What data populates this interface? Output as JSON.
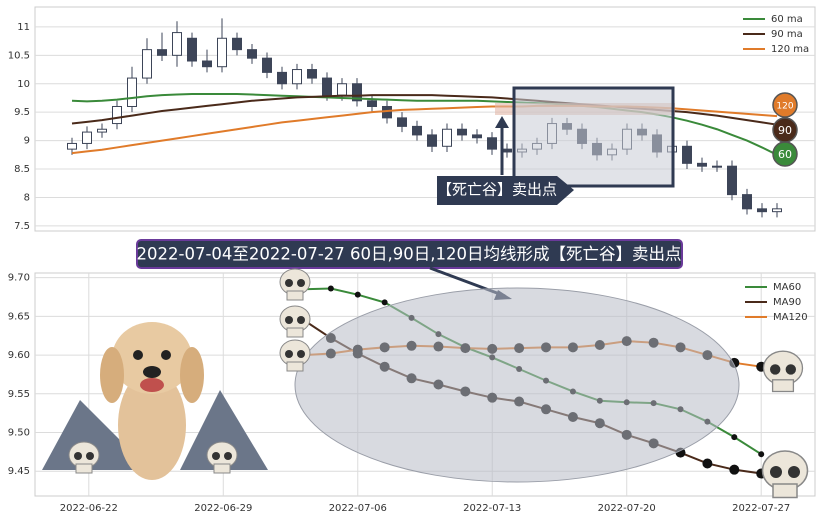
{
  "chart_data": [
    {
      "type": "candlestick",
      "open": [
        8.85,
        8.95,
        9.15,
        9.3,
        9.6,
        10.1,
        10.6,
        10.5,
        10.8,
        10.4,
        10.3,
        10.8,
        10.6,
        10.45,
        10.2,
        10.0,
        10.25,
        10.1,
        9.8,
        10.0,
        9.7,
        9.6,
        9.4,
        9.25,
        9.1,
        8.9,
        9.2,
        9.1,
        9.05,
        8.85,
        8.8,
        8.85,
        8.95,
        9.3,
        9.2,
        8.95,
        8.75,
        8.85,
        9.2,
        9.1,
        8.8,
        8.9,
        8.6,
        8.55,
        8.55,
        8.05,
        7.8,
        7.75
      ],
      "high": [
        9.05,
        9.25,
        9.3,
        9.7,
        10.3,
        10.8,
        10.9,
        11.1,
        10.9,
        10.6,
        11.15,
        10.9,
        10.7,
        10.55,
        10.3,
        10.35,
        10.35,
        10.2,
        10.1,
        10.1,
        9.8,
        9.7,
        9.5,
        9.35,
        9.2,
        9.3,
        9.3,
        9.2,
        9.15,
        8.95,
        8.95,
        9.05,
        9.4,
        9.4,
        9.3,
        9.05,
        8.95,
        9.3,
        9.3,
        9.2,
        9.0,
        9.0,
        8.7,
        8.65,
        8.65,
        8.15,
        7.9,
        7.9
      ],
      "low": [
        8.75,
        8.85,
        9.05,
        9.2,
        9.5,
        10.0,
        10.4,
        10.3,
        10.3,
        10.2,
        10.2,
        10.5,
        10.35,
        10.1,
        9.9,
        9.9,
        10.0,
        9.7,
        9.7,
        9.6,
        9.5,
        9.3,
        9.15,
        9.0,
        8.8,
        8.8,
        9.0,
        8.95,
        8.75,
        8.7,
        8.7,
        8.75,
        8.85,
        9.1,
        8.85,
        8.65,
        8.65,
        8.75,
        9.0,
        8.7,
        8.7,
        8.5,
        8.45,
        8.45,
        7.95,
        7.7,
        7.65,
        7.65
      ],
      "close": [
        8.95,
        9.15,
        9.2,
        9.6,
        10.1,
        10.6,
        10.5,
        10.9,
        10.4,
        10.3,
        10.8,
        10.6,
        10.45,
        10.2,
        10.0,
        10.25,
        10.1,
        9.8,
        10.0,
        9.7,
        9.6,
        9.4,
        9.25,
        9.1,
        8.9,
        9.2,
        9.1,
        9.05,
        8.85,
        8.8,
        8.85,
        8.95,
        9.3,
        9.2,
        8.95,
        8.75,
        8.85,
        9.2,
        9.1,
        8.8,
        8.9,
        8.6,
        8.55,
        8.55,
        8.05,
        7.8,
        7.75,
        7.8
      ],
      "up_color": "#ffffff",
      "down_color": "#3d4558",
      "series": [
        {
          "name": "60 ma",
          "color": "#3a8a3a",
          "badge": "60",
          "values": [
            9.7,
            9.69,
            9.7,
            9.72,
            9.75,
            9.78,
            9.8,
            9.81,
            9.82,
            9.82,
            9.82,
            9.82,
            9.81,
            9.8,
            9.79,
            9.78,
            9.77,
            9.76,
            9.75,
            9.74,
            9.73,
            9.72,
            9.71,
            9.7,
            9.7,
            9.7,
            9.7,
            9.7,
            9.69,
            9.68,
            9.67,
            9.66,
            9.65,
            9.63,
            9.61,
            9.59,
            9.56,
            9.53,
            9.5,
            9.46,
            9.41,
            9.35,
            9.28,
            9.2,
            9.1,
            9.0,
            8.88,
            8.75
          ]
        },
        {
          "name": "90 ma",
          "color": "#4a2a1a",
          "badge": "90",
          "values": [
            9.3,
            9.33,
            9.36,
            9.4,
            9.44,
            9.48,
            9.52,
            9.55,
            9.58,
            9.61,
            9.64,
            9.67,
            9.7,
            9.72,
            9.74,
            9.76,
            9.77,
            9.78,
            9.79,
            9.79,
            9.8,
            9.8,
            9.8,
            9.8,
            9.8,
            9.79,
            9.78,
            9.77,
            9.76,
            9.74,
            9.72,
            9.7,
            9.68,
            9.66,
            9.64,
            9.62,
            9.6,
            9.58,
            9.56,
            9.54,
            9.52,
            9.5,
            9.47,
            9.44,
            9.4,
            9.36,
            9.32,
            9.28
          ]
        },
        {
          "name": "120 ma",
          "color": "#e07b2a",
          "badge": "120",
          "values": [
            8.78,
            8.81,
            8.84,
            8.88,
            8.92,
            8.96,
            9.0,
            9.04,
            9.08,
            9.12,
            9.16,
            9.2,
            9.24,
            9.28,
            9.32,
            9.35,
            9.38,
            9.41,
            9.44,
            9.47,
            9.5,
            9.52,
            9.54,
            9.55,
            9.56,
            9.57,
            9.58,
            9.59,
            9.6,
            9.6,
            9.6,
            9.61,
            9.61,
            9.61,
            9.61,
            9.6,
            9.6,
            9.6,
            9.59,
            9.58,
            9.57,
            9.55,
            9.53,
            9.51,
            9.49,
            9.47,
            9.45,
            9.43
          ]
        }
      ],
      "ylim": [
        7.41,
        11.35
      ],
      "yticks": [
        7.5,
        8.0,
        8.5,
        9.0,
        9.5,
        10.0,
        10.5,
        11.0
      ],
      "grid": true,
      "legend": "upper right",
      "annotation": "【死亡谷】卖出点",
      "banner": "2022-07-04至2022-07-27 60日,90日,120日均线形成【死亡谷】卖出点"
    },
    {
      "type": "line",
      "x": [
        "2022-07-04",
        "2022-07-05",
        "2022-07-06",
        "2022-07-07",
        "2022-07-08",
        "2022-07-11",
        "2022-07-12",
        "2022-07-13",
        "2022-07-14",
        "2022-07-15",
        "2022-07-18",
        "2022-07-19",
        "2022-07-20",
        "2022-07-21",
        "2022-07-22",
        "2022-07-25",
        "2022-07-26",
        "2022-07-27"
      ],
      "series": [
        {
          "name": "MA60",
          "color": "#3a8a3a",
          "values": [
            9.685,
            9.686,
            9.678,
            9.668,
            9.648,
            9.627,
            9.61,
            9.597,
            9.582,
            9.567,
            9.553,
            9.541,
            9.539,
            9.538,
            9.53,
            9.514,
            9.494,
            9.472
          ]
        },
        {
          "name": "MA90",
          "color": "#4a2a1a",
          "values": [
            9.645,
            9.622,
            9.602,
            9.585,
            9.57,
            9.562,
            9.553,
            9.545,
            9.54,
            9.53,
            9.52,
            9.512,
            9.497,
            9.486,
            9.474,
            9.46,
            9.452,
            9.447
          ]
        },
        {
          "name": "MA120",
          "color": "#e07b2a",
          "values": [
            9.6,
            9.602,
            9.607,
            9.61,
            9.612,
            9.611,
            9.609,
            9.608,
            9.609,
            9.61,
            9.61,
            9.613,
            9.618,
            9.616,
            9.61,
            9.6,
            9.59,
            9.585
          ]
        }
      ],
      "xlim": [
        "2022-06-20",
        "2022-07-29"
      ],
      "xticks": [
        "2022-06-22",
        "2022-06-29",
        "2022-07-06",
        "2022-07-13",
        "2022-07-20",
        "2022-07-27"
      ],
      "ylim": [
        9.418,
        9.706
      ],
      "yticks": [
        9.45,
        {
          "value": 9.5,
          "label": "9.50"
        },
        9.55,
        {
          "value": 9.6,
          "label": "9.60"
        },
        9.65,
        {
          "value": 9.7,
          "label": "9.70"
        }
      ],
      "grid": true,
      "legend": "upper right"
    }
  ]
}
